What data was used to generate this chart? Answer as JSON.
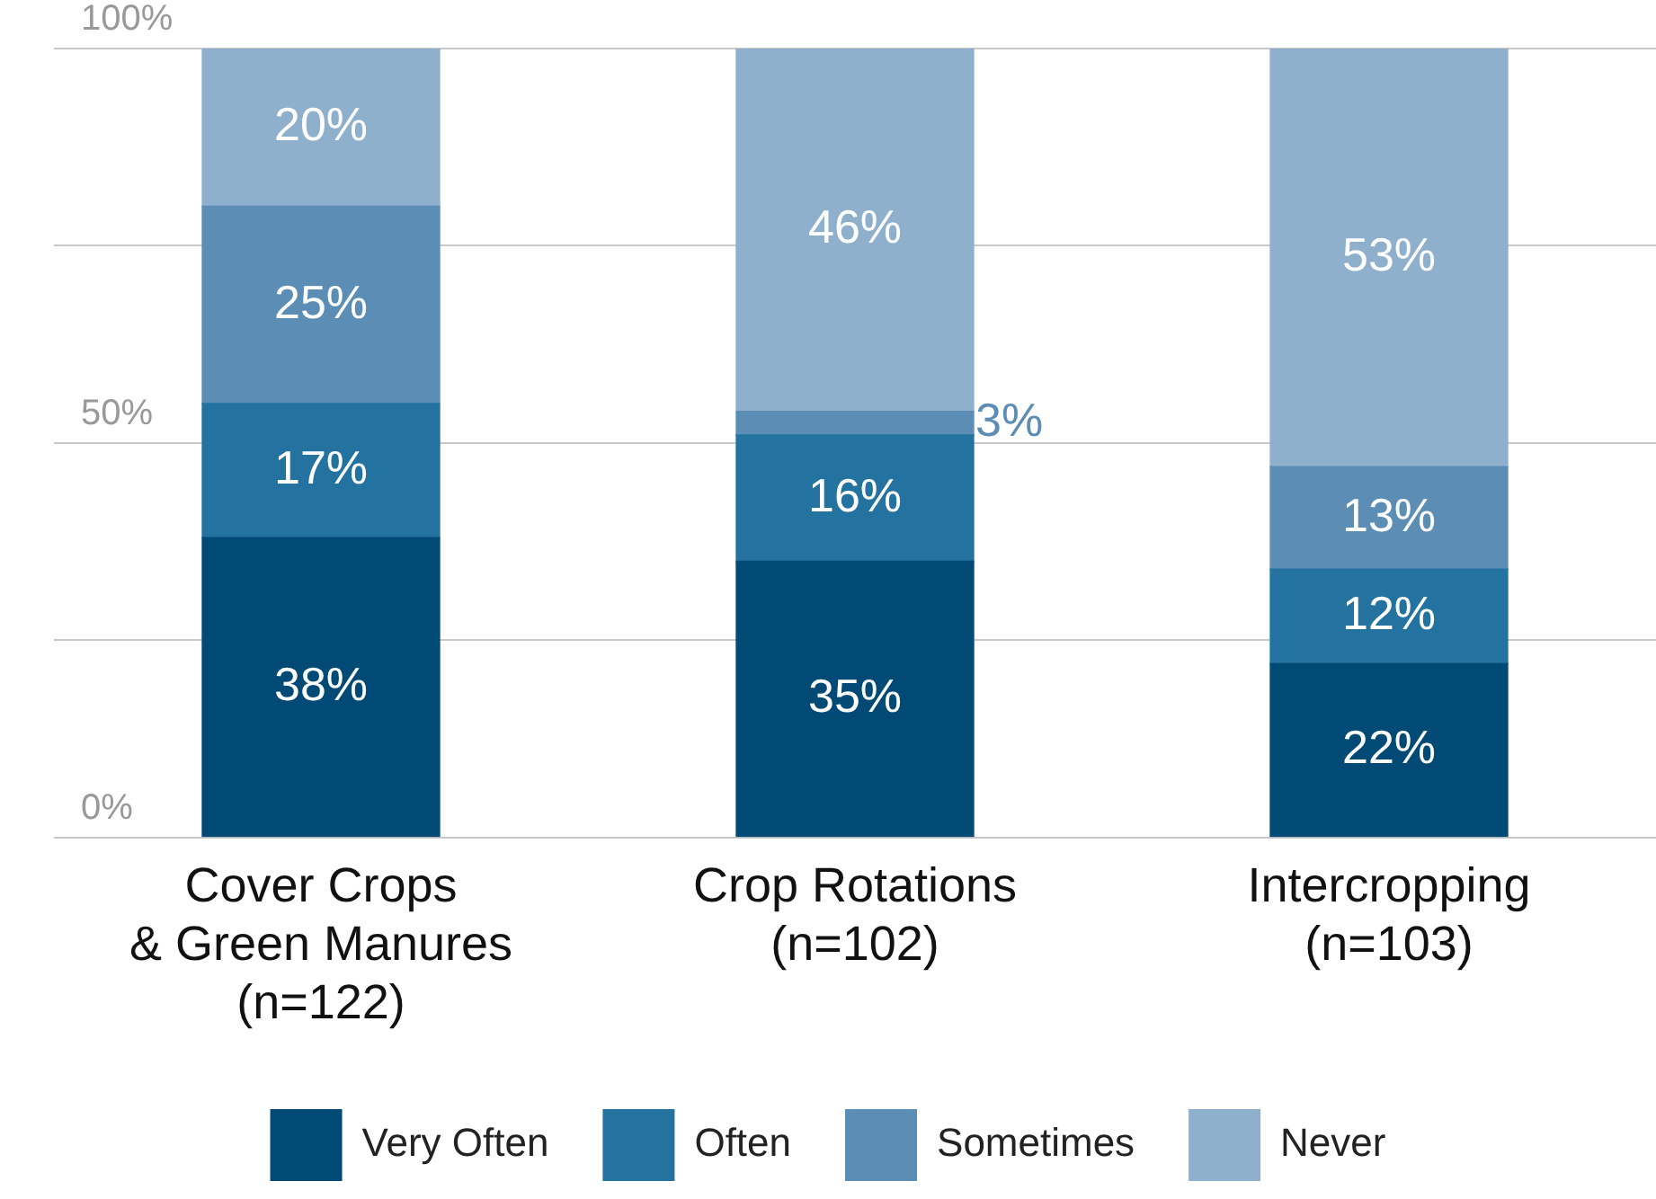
{
  "chart_data": {
    "type": "bar",
    "stacked": true,
    "categories": [
      "Cover Crops\n& Green Manures\n(n=122)",
      "Crop Rotations\n(n=102)",
      "Intercropping\n(n=103)"
    ],
    "series": [
      {
        "name": "Very Often",
        "color": "#004a75",
        "values": [
          38,
          35,
          22
        ],
        "value_labels": [
          "38%",
          "35%",
          "22%"
        ]
      },
      {
        "name": "Often",
        "color": "#23729f",
        "values": [
          17,
          16,
          12
        ],
        "value_labels": [
          "17%",
          "16%",
          "12%"
        ]
      },
      {
        "name": "Sometimes",
        "color": "#5b8db5",
        "values": [
          25,
          3,
          13
        ],
        "value_labels": [
          "25%",
          "3%",
          "13%"
        ]
      },
      {
        "name": "Never",
        "color": "#8fb0cd",
        "values": [
          20,
          46,
          53
        ],
        "value_labels": [
          "20%",
          "46%",
          "53%"
        ]
      }
    ],
    "ylim": [
      0,
      100
    ],
    "yticks": [
      {
        "value": 0,
        "label": "0%"
      },
      {
        "value": 25,
        "label": null
      },
      {
        "value": 50,
        "label": "50%"
      },
      {
        "value": 75,
        "label": null
      },
      {
        "value": 100,
        "label": "100%"
      }
    ],
    "grid": "y",
    "legend": "bottom"
  }
}
